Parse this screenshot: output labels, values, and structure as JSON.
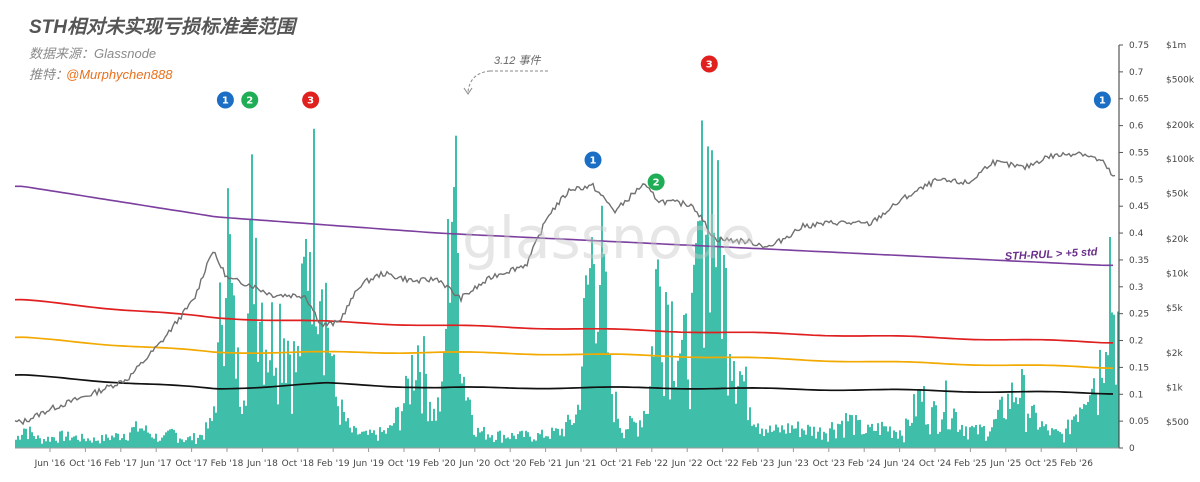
{
  "chart_data": {
    "type": "area",
    "title": "STH相对未实现亏损标准差范围",
    "subtitle": "数据来源：Glassnode",
    "credit_label": "推特：",
    "credit_handle": "@Murphychen888",
    "watermark": "glassnode",
    "x_tick_labels": [
      "Jun '16",
      "Oct '16",
      "Feb '17",
      "Jun '17",
      "Oct '17",
      "Feb '18",
      "Jun '18",
      "Oct '18",
      "Feb '19",
      "Jun '19",
      "Oct '19",
      "Feb '20",
      "Jun '20",
      "Oct '20",
      "Feb '21",
      "Jun '21",
      "Oct '21",
      "Feb '22",
      "Jun '22",
      "Oct '22",
      "Feb '23",
      "Jun '23",
      "Oct '23",
      "Feb '24",
      "Jun '24",
      "Oct '24",
      "Feb '25",
      "Jun '25",
      "Oct '25",
      "Feb '26"
    ],
    "y_left": {
      "ylim": [
        0,
        0.75
      ],
      "tick_labels": [
        "0",
        "0.05",
        "0.1",
        "0.15",
        "0.2",
        "0.25",
        "0.3",
        "0.35",
        "0.4",
        "0.45",
        "0.5",
        "0.55",
        "0.6",
        "0.65",
        "0.7",
        "0.75"
      ]
    },
    "y_right": {
      "scale": "log",
      "tick_labels": [
        "$500",
        "$1k",
        "$2k",
        "$5k",
        "$10k",
        "$20k",
        "$50k",
        "$100k",
        "$200k",
        "$500k",
        "$1m"
      ],
      "tick_values": [
        500,
        1000,
        2000,
        5000,
        10000,
        20000,
        50000,
        100000,
        200000,
        500000,
        1000000
      ]
    },
    "colors": {
      "area": "#3fbfa9",
      "price": "#707070",
      "purple": "#7b3f9e",
      "red": "#e02020",
      "orange": "#f2a900",
      "black": "#111111",
      "blue_badge": "#1a6fc4",
      "green_badge": "#1fae55",
      "red_badge": "#e0201f"
    },
    "series": [
      {
        "name": "STH-RUL > +5 std",
        "type": "line",
        "x": [
          2016.25,
          2018.0,
          2020.0,
          2022.0,
          2024.0,
          2026.0
        ],
        "y": [
          0.487,
          0.43,
          0.4,
          0.38,
          0.36,
          0.34
        ]
      },
      {
        "type": "line",
        "x": [
          2016.25,
          2018.0,
          2020.0,
          2022.0,
          2024.0,
          2026.0
        ],
        "y": [
          0.275,
          0.242,
          0.228,
          0.218,
          0.208,
          0.197
        ]
      },
      {
        "type": "line",
        "x": [
          2016.25,
          2018.0,
          2020.0,
          2022.0,
          2024.0,
          2026.0
        ],
        "y": [
          0.205,
          0.178,
          0.178,
          0.172,
          0.16,
          0.15
        ]
      },
      {
        "type": "line",
        "x": [
          2016.25,
          2018.0,
          2019.0,
          2020.0,
          2022.0,
          2024.0,
          2026.0
        ],
        "y": [
          0.135,
          0.11,
          0.12,
          0.112,
          0.112,
          0.108,
          0.102
        ]
      },
      {
        "type": "line",
        "x": [
          2016.25,
          2016.5,
          2016.9,
          2017.2,
          2017.5,
          2017.8,
          2017.96,
          2018.1,
          2018.3,
          2018.5,
          2018.8,
          2018.95,
          2019.1,
          2019.3,
          2019.5,
          2019.8,
          2020.0,
          2020.2,
          2020.5,
          2020.8,
          2021.0,
          2021.2,
          2021.4,
          2021.6,
          2021.85,
          2022.0,
          2022.3,
          2022.5,
          2022.8,
          2023.0,
          2023.3,
          2023.6,
          2023.9,
          2024.2,
          2024.5,
          2024.8,
          2025.0,
          2025.3,
          2025.5,
          2025.8,
          2026.0,
          2026.1
        ],
        "y": [
          500,
          650,
          900,
          1200,
          2500,
          6000,
          16000,
          9000,
          8000,
          6500,
          6400,
          3500,
          3700,
          8000,
          10000,
          8500,
          9000,
          6000,
          9500,
          12000,
          33000,
          55000,
          58000,
          35000,
          60000,
          43000,
          40000,
          20000,
          19000,
          17000,
          26000,
          28000,
          27000,
          45000,
          65000,
          62000,
          95000,
          84000,
          105000,
          115000,
          95000,
          70000
        ]
      }
    ],
    "badges": [
      {
        "label": "1",
        "color": "blue",
        "x": 2018.08
      },
      {
        "label": "2",
        "color": "green",
        "x": 2018.3
      },
      {
        "label": "3",
        "color": "red",
        "x": 2018.85
      },
      {
        "label": "1",
        "color": "blue",
        "x": 2021.4
      },
      {
        "label": "2",
        "color": "green",
        "x": 2021.97
      },
      {
        "label": "3",
        "color": "red",
        "x": 2022.45
      },
      {
        "label": "1",
        "color": "blue",
        "x": 2026.0
      }
    ],
    "annotation": "3.12 事件",
    "rul_label": "STH-RUL > +5 std"
  }
}
